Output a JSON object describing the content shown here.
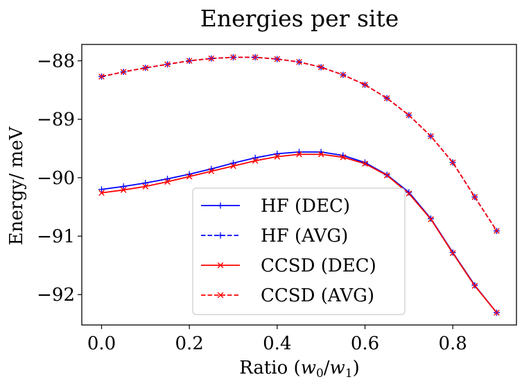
{
  "chart_data": {
    "type": "line",
    "title": "Energies per site",
    "xlabel_prefix": "Ratio (",
    "xlabel_var_w": "w",
    "xlabel_sub0": "0",
    "xlabel_slash": "/",
    "xlabel_sub1": "1",
    "xlabel_suffix": ")",
    "ylabel": "Energy/ meV",
    "xlim": [
      -0.045,
      0.945
    ],
    "ylim": [
      -92.52,
      -87.72
    ],
    "x_ticks": [
      0.0,
      0.2,
      0.4,
      0.6,
      0.8
    ],
    "x_tick_labels": [
      "0.0",
      "0.2",
      "0.4",
      "0.6",
      "0.8"
    ],
    "y_ticks": [
      -92,
      -91,
      -90,
      -89,
      -88
    ],
    "y_tick_labels": [
      "−92",
      "−91",
      "−90",
      "−89",
      "−88"
    ],
    "legend_position": "lower-center",
    "x": [
      0.0,
      0.05,
      0.1,
      0.15,
      0.2,
      0.25,
      0.3,
      0.35,
      0.4,
      0.45,
      0.5,
      0.55,
      0.6,
      0.65,
      0.7,
      0.75,
      0.8,
      0.85,
      0.9
    ],
    "series": [
      {
        "name": "HF (DEC)",
        "color": "#0000ff",
        "dash": "solid",
        "marker": "plus",
        "values": [
          -90.2,
          -90.15,
          -90.09,
          -90.02,
          -89.94,
          -89.85,
          -89.75,
          -89.66,
          -89.59,
          -89.56,
          -89.56,
          -89.62,
          -89.74,
          -89.95,
          -90.25,
          -90.7,
          -91.28,
          -91.84,
          -92.31
        ]
      },
      {
        "name": "HF (AVG)",
        "color": "#0000ff",
        "dash": "dashed",
        "marker": "plus",
        "values": [
          -88.27,
          -88.19,
          -88.12,
          -88.06,
          -88.0,
          -87.96,
          -87.94,
          -87.94,
          -87.97,
          -88.02,
          -88.11,
          -88.24,
          -88.41,
          -88.64,
          -88.93,
          -89.29,
          -89.74,
          -90.33,
          -90.91
        ]
      },
      {
        "name": "CCSD (DEC)",
        "color": "#ff0000",
        "dash": "solid",
        "marker": "x",
        "values": [
          -90.26,
          -90.21,
          -90.15,
          -90.07,
          -89.98,
          -89.89,
          -89.8,
          -89.71,
          -89.64,
          -89.6,
          -89.6,
          -89.65,
          -89.76,
          -89.96,
          -90.27,
          -90.71,
          -91.29,
          -91.85,
          -92.31
        ]
      },
      {
        "name": "CCSD (AVG)",
        "color": "#ff0000",
        "dash": "dashed",
        "marker": "x",
        "values": [
          -88.27,
          -88.19,
          -88.12,
          -88.06,
          -88.0,
          -87.96,
          -87.94,
          -87.94,
          -87.97,
          -88.02,
          -88.11,
          -88.24,
          -88.41,
          -88.64,
          -88.93,
          -89.29,
          -89.74,
          -90.33,
          -90.91
        ]
      }
    ]
  }
}
